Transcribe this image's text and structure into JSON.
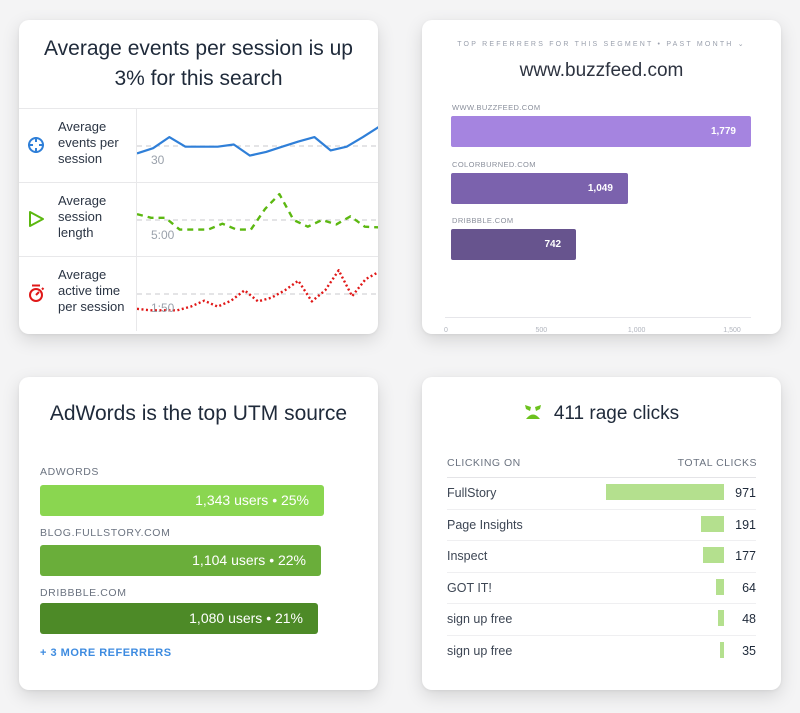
{
  "events_card": {
    "title": "Average events per session is up 3% for this search",
    "metrics": [
      {
        "icon": "crosshair-icon",
        "label": "Average events per session",
        "baseline_label": "30",
        "color": "#2f7fd8",
        "style": "solid",
        "values": [
          0.4,
          0.47,
          0.62,
          0.49,
          0.49,
          0.49,
          0.52,
          0.37,
          0.42,
          0.49,
          0.56,
          0.62,
          0.44,
          0.49,
          0.62,
          0.76
        ]
      },
      {
        "icon": "play-icon",
        "label": "Average session length",
        "baseline_label": "5:00",
        "color": "#5cb811",
        "style": "dashed",
        "values": [
          0.58,
          0.53,
          0.53,
          0.37,
          0.37,
          0.37,
          0.45,
          0.37,
          0.37,
          0.65,
          0.85,
          0.5,
          0.41,
          0.5,
          0.44,
          0.55,
          0.41,
          0.4
        ]
      },
      {
        "icon": "stopwatch-icon",
        "label": "Average active time per session",
        "baseline_label": "1:50",
        "color": "#e01818",
        "style": "dotted",
        "values": [
          0.3,
          0.28,
          0.28,
          0.28,
          0.33,
          0.41,
          0.33,
          0.41,
          0.55,
          0.4,
          0.45,
          0.55,
          0.68,
          0.4,
          0.55,
          0.82,
          0.47,
          0.7,
          0.8
        ]
      }
    ]
  },
  "referrers_card": {
    "subtitle": "TOP REFERRERS FOR THIS SEGMENT • PAST MONTH ⌄",
    "title": "www.buzzfeed.com",
    "chart_data": {
      "type": "bar",
      "orientation": "horizontal",
      "categories": [
        "WWW.BUZZFEED.COM",
        "COLORBURNED.COM",
        "DRIBBBLE.COM"
      ],
      "values": [
        1779,
        1049,
        742
      ],
      "value_labels": [
        "1,779",
        "1,049",
        "742"
      ],
      "colors": [
        "#a584e0",
        "#7b62ad",
        "#67548e"
      ],
      "xlim": [
        0,
        1650
      ],
      "xticks": [
        0,
        500,
        1000,
        1500
      ],
      "xtick_labels": [
        "0",
        "500",
        "1,000",
        "1,500"
      ]
    }
  },
  "utm_card": {
    "title": "AdWords is the top UTM source",
    "sources": [
      {
        "label": "ADWORDS",
        "value_text": "1,343 users • 25%",
        "users": 1343,
        "percent": 25,
        "color": "#8ad650"
      },
      {
        "label": "BLOG.FULLSTORY.COM",
        "value_text": "1,104 users • 22%",
        "users": 1104,
        "percent": 22,
        "color": "#6aae3a"
      },
      {
        "label": "DRIBBBLE.COM",
        "value_text": "1,080 users • 21%",
        "users": 1080,
        "percent": 21,
        "color": "#4d8a27"
      }
    ],
    "more_link": "+ 3 MORE REFERRERS"
  },
  "rage_card": {
    "icon": "angry-face-icon",
    "title": "411 rage clicks",
    "col_left": "CLICKING ON",
    "col_right": "TOTAL CLICKS",
    "rows": [
      {
        "name": "FullStory",
        "count": 971
      },
      {
        "name": "Page Insights",
        "count": 191
      },
      {
        "name": "Inspect",
        "count": 177
      },
      {
        "name": "GOT IT!",
        "count": 64
      },
      {
        "name": "sign up free",
        "count": 48
      },
      {
        "name": "sign up free",
        "count": 35
      }
    ]
  }
}
